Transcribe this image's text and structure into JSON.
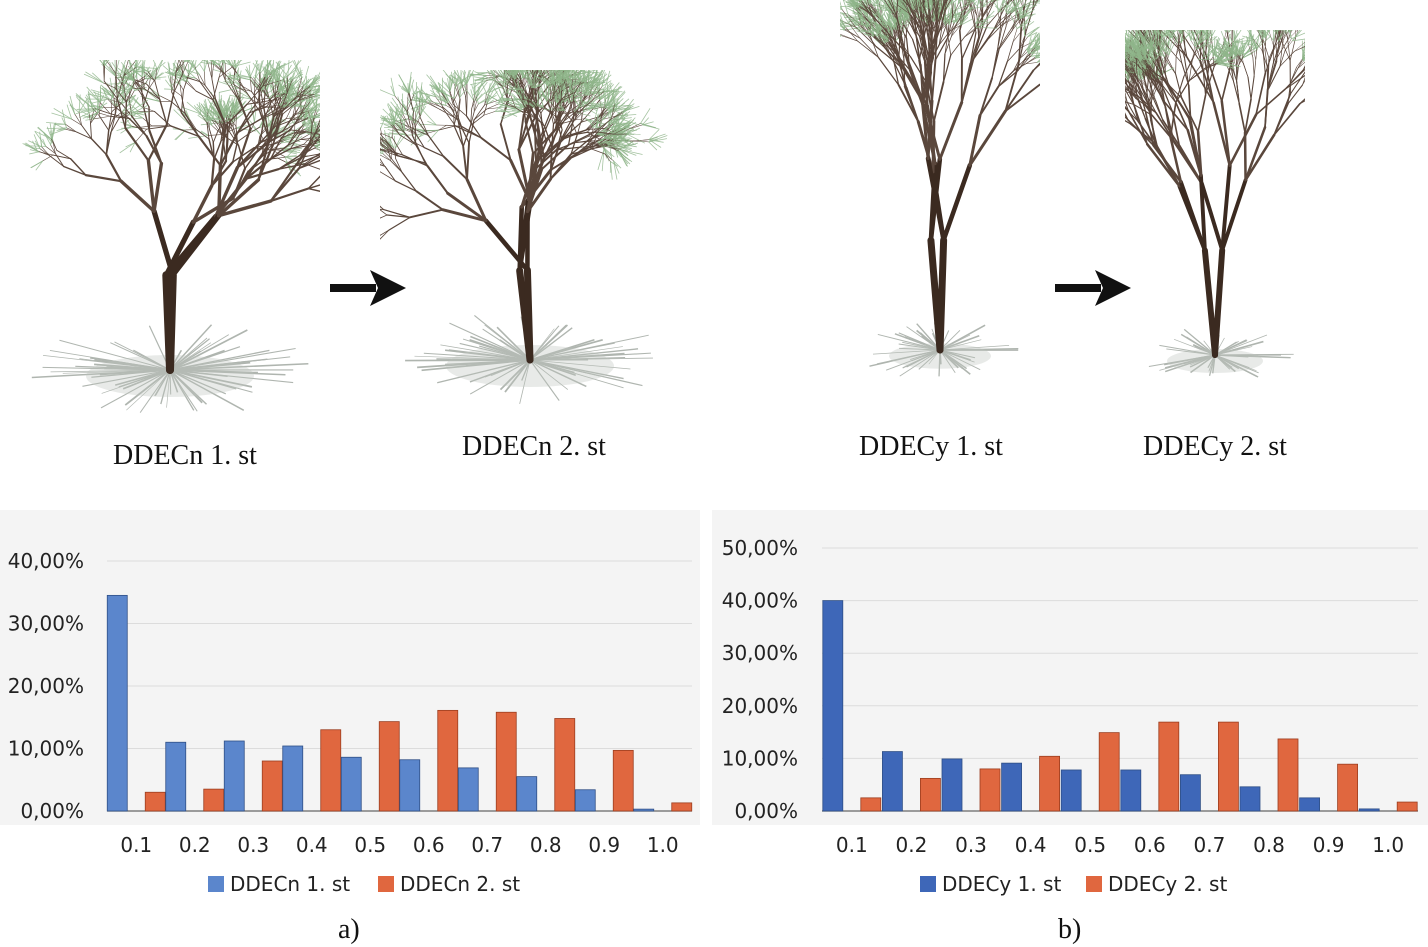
{
  "trees": [
    {
      "caption": "DDECn 1. st"
    },
    {
      "caption": "DDECn 2. st"
    },
    {
      "caption": "DDECy 1. st"
    },
    {
      "caption": "DDECy 2. st"
    }
  ],
  "arrows": [
    "arrow-right-icon",
    "arrow-right-icon"
  ],
  "panel_labels": [
    "a)",
    "b)"
  ],
  "chart_data": [
    {
      "type": "bar",
      "categories": [
        "0.1",
        "0.2",
        "0.3",
        "0.4",
        "0.5",
        "0.6",
        "0.7",
        "0.8",
        "0.9",
        "1.0"
      ],
      "series": [
        {
          "name": "DDECn 1. st",
          "color": "#5b86cc",
          "values": [
            34.5,
            11.0,
            11.2,
            10.4,
            8.6,
            8.2,
            6.9,
            5.5,
            3.4,
            0.3
          ]
        },
        {
          "name": "DDECn 2. st",
          "color": "#e0673f",
          "values": [
            3.0,
            3.5,
            8.0,
            13.0,
            14.3,
            16.1,
            15.8,
            14.8,
            9.7,
            1.3
          ]
        }
      ],
      "ylim": [
        0,
        40
      ],
      "yticks": [
        "0,00%",
        "10,00%",
        "20,00%",
        "30,00%",
        "40,00%"
      ],
      "grid": true,
      "legend": "bottom"
    },
    {
      "type": "bar",
      "categories": [
        "0.1",
        "0.2",
        "0.3",
        "0.4",
        "0.5",
        "0.6",
        "0.7",
        "0.8",
        "0.9",
        "1.0"
      ],
      "series": [
        {
          "name": "DDECy 1. st",
          "color": "#3e67b8",
          "values": [
            40.0,
            11.3,
            9.9,
            9.1,
            7.8,
            7.8,
            6.9,
            4.6,
            2.5,
            0.4
          ]
        },
        {
          "name": "DDECy 2. st",
          "color": "#e0673f",
          "values": [
            2.5,
            6.2,
            8.0,
            10.4,
            14.9,
            16.9,
            16.9,
            13.7,
            8.9,
            1.7
          ]
        }
      ],
      "ylim": [
        0,
        50
      ],
      "yticks": [
        "0,00%",
        "10,00%",
        "20,00%",
        "30,00%",
        "40,00%",
        "50,00%"
      ],
      "grid": true,
      "legend": "bottom"
    }
  ]
}
